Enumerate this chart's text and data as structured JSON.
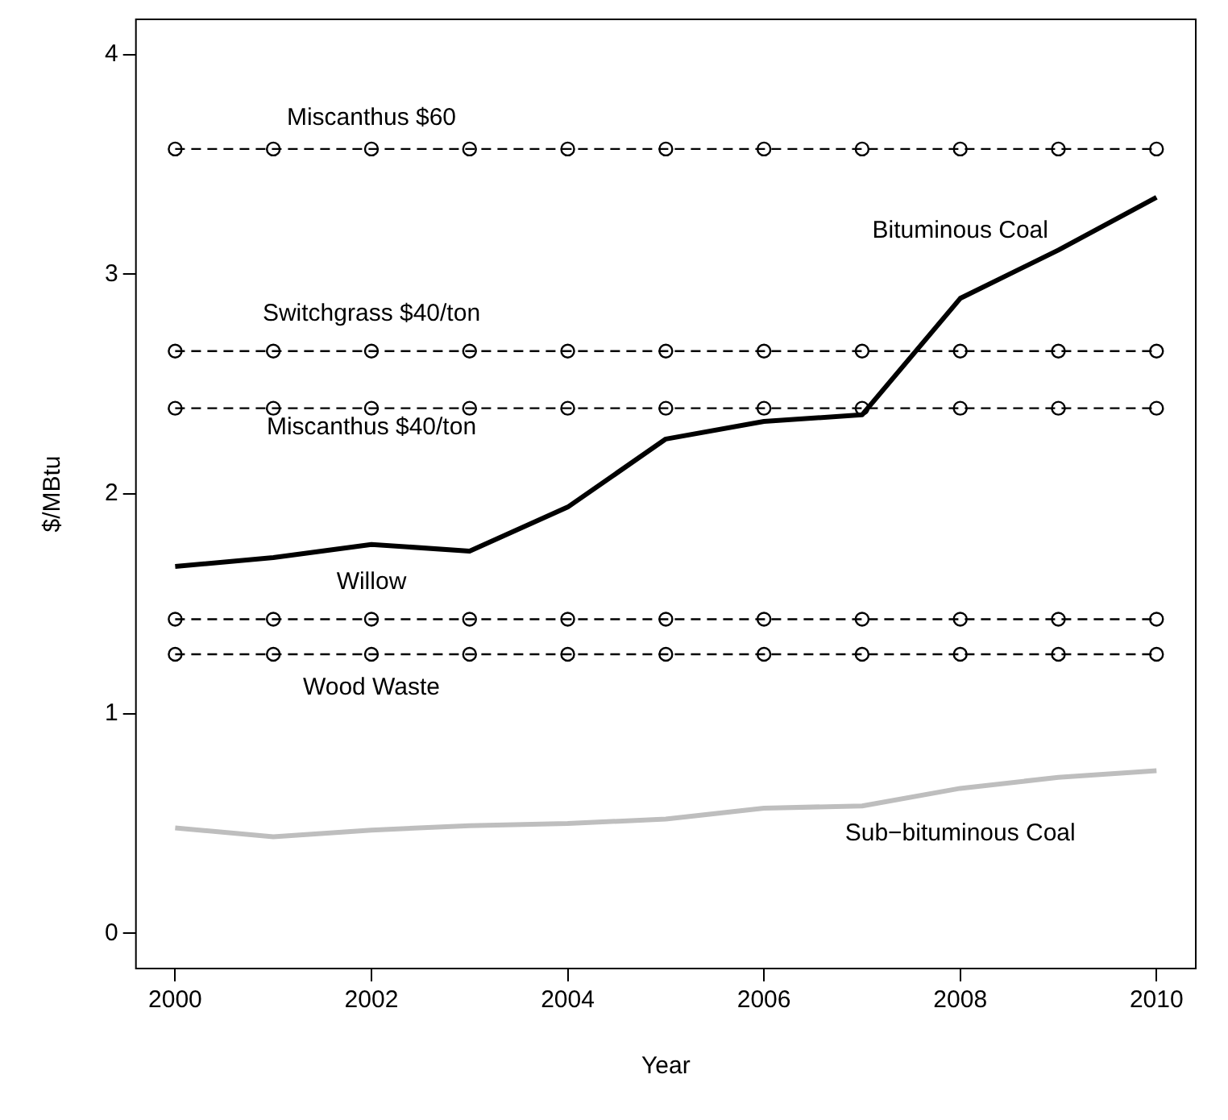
{
  "chart_data": {
    "type": "line",
    "xlabel": "Year",
    "ylabel": "$/MBtu",
    "x": [
      2000,
      2001,
      2002,
      2003,
      2004,
      2005,
      2006,
      2007,
      2008,
      2009,
      2010
    ],
    "xlim": [
      1999.6,
      2010.4
    ],
    "xticks": [
      2000,
      2002,
      2004,
      2006,
      2008,
      2010
    ],
    "ylim": [
      -0.16,
      4.16
    ],
    "yticks": [
      0,
      1,
      2,
      3,
      4
    ],
    "grid": false,
    "legend": false,
    "series": [
      {
        "name": "Bituminous Coal",
        "color": "#000000",
        "marker": "none",
        "line_style": "solid",
        "values": [
          1.67,
          1.71,
          1.77,
          1.74,
          1.94,
          2.25,
          2.33,
          2.36,
          2.89,
          3.11,
          3.35
        ]
      },
      {
        "name": "Sub−bituminous Coal",
        "color": "#bebebe",
        "marker": "none",
        "line_style": "solid",
        "values": [
          0.48,
          0.44,
          0.47,
          0.49,
          0.5,
          0.52,
          0.57,
          0.58,
          0.66,
          0.71,
          0.74
        ]
      },
      {
        "name": "Miscanthus $60",
        "color": "#000000",
        "marker": "circle",
        "line_style": "dashed",
        "values": [
          3.57,
          3.57,
          3.57,
          3.57,
          3.57,
          3.57,
          3.57,
          3.57,
          3.57,
          3.57,
          3.57
        ]
      },
      {
        "name": "Switchgrass $40/ton",
        "color": "#000000",
        "marker": "circle",
        "line_style": "dashed",
        "values": [
          2.65,
          2.65,
          2.65,
          2.65,
          2.65,
          2.65,
          2.65,
          2.65,
          2.65,
          2.65,
          2.65
        ]
      },
      {
        "name": "Miscanthus $40/ton",
        "color": "#000000",
        "marker": "circle",
        "line_style": "dashed",
        "values": [
          2.39,
          2.39,
          2.39,
          2.39,
          2.39,
          2.39,
          2.39,
          2.39,
          2.39,
          2.39,
          2.39
        ]
      },
      {
        "name": "Willow",
        "color": "#000000",
        "marker": "circle",
        "line_style": "dashed",
        "values": [
          1.43,
          1.43,
          1.43,
          1.43,
          1.43,
          1.43,
          1.43,
          1.43,
          1.43,
          1.43,
          1.43
        ]
      },
      {
        "name": "Wood Waste",
        "color": "#000000",
        "marker": "circle",
        "line_style": "dashed",
        "values": [
          1.27,
          1.27,
          1.27,
          1.27,
          1.27,
          1.27,
          1.27,
          1.27,
          1.27,
          1.27,
          1.27
        ]
      }
    ]
  }
}
